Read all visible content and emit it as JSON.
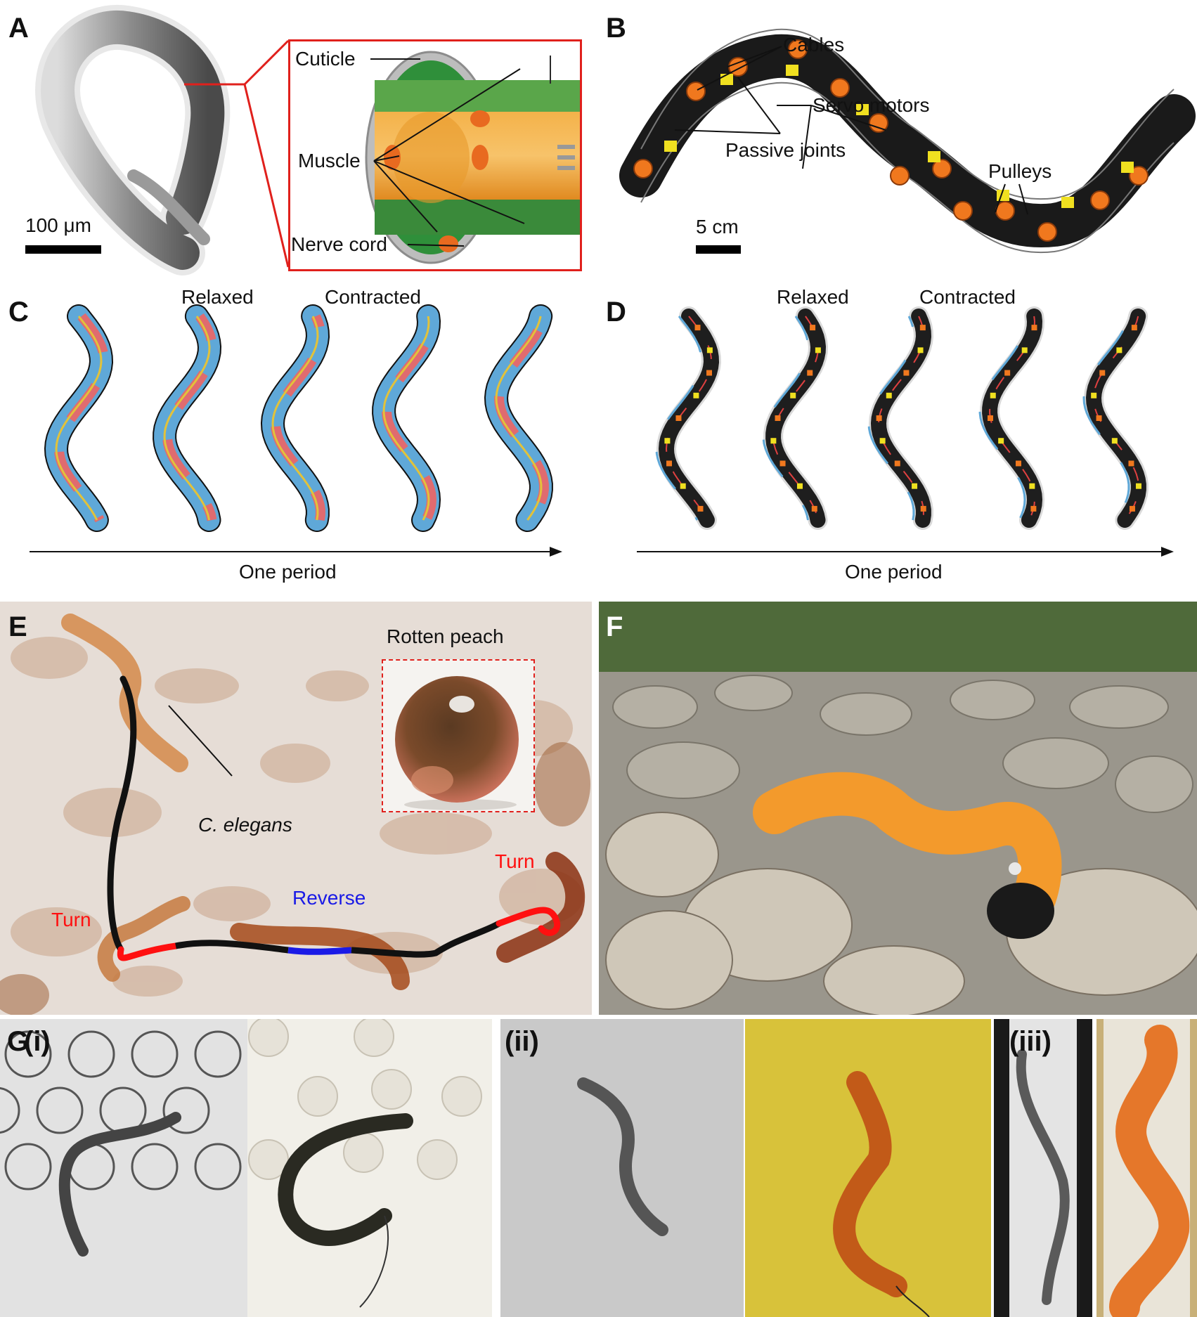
{
  "panel_labels": {
    "A": "A",
    "B": "B",
    "C": "C",
    "D": "D",
    "E": "E",
    "F": "F",
    "G": "G",
    "Gi": "(i)",
    "Gii": "(ii)",
    "Giii": "(iii)"
  },
  "panel_a": {
    "scale": "100 μm",
    "cuticle": "Cuticle",
    "muscle": "Muscle",
    "nerve_cord": "Nerve cord"
  },
  "panel_b": {
    "cables": "Cables",
    "servo_motors": "Servo motors",
    "passive_joints": "Passive joints",
    "pulleys": "Pulleys",
    "scale": "5 cm"
  },
  "panel_c": {
    "relaxed": "Relaxed",
    "contracted": "Contracted",
    "period": "One period"
  },
  "panel_d": {
    "relaxed": "Relaxed",
    "contracted": "Contracted",
    "period": "One period"
  },
  "panel_e": {
    "inset_title": "Rotten peach",
    "species": "C. elegans",
    "turn_left": "Turn",
    "turn_right": "Turn",
    "reverse": "Reverse"
  },
  "colors": {
    "contracted": "#e06b6f",
    "relaxed": "#5fa8d8",
    "nerve": "#e2c23a",
    "track_normal": "#111111",
    "track_turn": "#ff1010",
    "track_reverse": "#1a1ae6",
    "accent_red": "#e0201c"
  }
}
